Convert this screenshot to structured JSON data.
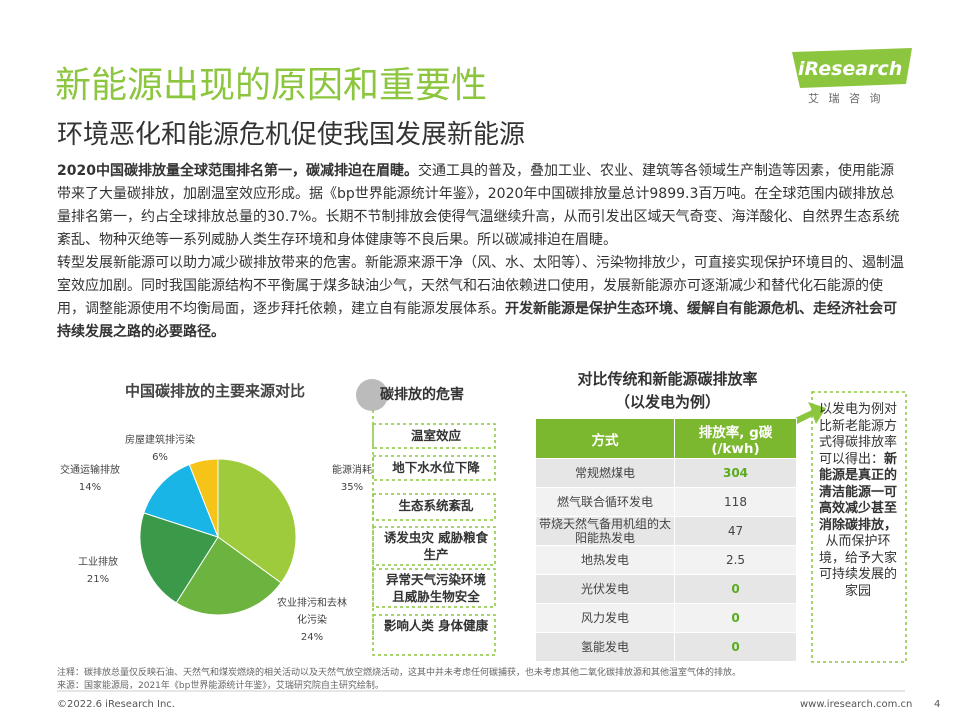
{
  "header": {
    "title": "新能源出现的原因和重要性",
    "subtitle": "环境恶化和能源危机促使我国发展新能源"
  },
  "logo": {
    "name": "iResearch",
    "tagline": "艾 瑞 咨 询"
  },
  "body": [
    [
      {
        "bold": true,
        "text": "2020中国碳排放量全球范围排名第一，碳减排迫在眉睫。"
      },
      {
        "bold": false,
        "text": "交通工具的普及，叠加工业、农业、建筑等各领域生产制造等因素，使用能源带来了大量碳排放，加剧温室效应形成。据《bp世界能源统计年鉴》，2020年中国碳排放量总计9899.3百万吨。在全球范围内碳排放总量排名第一，约占全球排放总量的30.7%。长期不节制排放会使得气温继续升高，从而引发出区域天气奇变、海洋酸化、自然界生态系统紊乱、物种灭绝等一系列威胁人类生存环境和身体健康等不良后果。所以碳减排迫在眉睫。"
      }
    ],
    [
      {
        "bold": false,
        "text": "转型发展新能源可以助力减少碳排放带来的危害。新能源来源干净（风、水、太阳等）、污染物排放少，可直接实现保护环境目的、遏制温室效应加剧。同时我国能源结构不平衡属于煤多缺油少气，天然气和石油依赖进口使用，发展新能源亦可逐渐减少和替代化石能源的使用，调整能源使用不均衡局面，逐步拜托依赖，建立自有能源发展体系。"
      },
      {
        "bold": true,
        "text": "开发新能源是保护生态环境、缓解自有能源危机、走经济社会可持续发展之路的必要路径。"
      }
    ]
  ],
  "pie_chart": {
    "type": "pie",
    "title": "中国碳排放的主要来源对比",
    "categories": [
      "能源消耗",
      "农业排污和去林化污染",
      "工业排放",
      "交通运输排放",
      "房屋建筑排污染"
    ],
    "values": [
      35,
      24,
      21,
      14,
      6
    ],
    "value_labels": [
      "35%",
      "24%",
      "21%",
      "14%",
      "6%"
    ],
    "colors": [
      "#9dcb3b",
      "#6cb33f",
      "#3a9a4a",
      "#19b5e6",
      "#f6c318"
    ]
  },
  "harms": {
    "title": "碳排放的危害",
    "items": [
      "温室效应",
      "地下水水位下降",
      "生态系统紊乱",
      "诱发虫灾 威胁粮食生产",
      "异常天气污染环境 且威胁生物安全",
      "影响人类 身体健康"
    ]
  },
  "table": {
    "title": "对比传统和新能源碳排放率",
    "subtitle": "（以发电为例）",
    "headers": [
      "方式",
      "排放率, g碳 (/kwh)"
    ],
    "highlight_color": "#5aab1e",
    "rows": [
      {
        "label": "常规燃煤电",
        "value": 304,
        "highlight": true
      },
      {
        "label": "燃气联合循环发电",
        "value": 118,
        "highlight": false
      },
      {
        "label": "带烧天然气备用机组的太阳能热发电",
        "value": 47,
        "highlight": false
      },
      {
        "label": "地热发电",
        "value": 2.5,
        "highlight": false
      },
      {
        "label": "光伏发电",
        "value": 0,
        "highlight": true
      },
      {
        "label": "风力发电",
        "value": 0,
        "highlight": true
      },
      {
        "label": "氢能发电",
        "value": 0,
        "highlight": true
      }
    ]
  },
  "note": [
    {
      "bold": false,
      "text": "以发电为例对比新老能源方式得碳排放率可以得出："
    },
    {
      "bold": true,
      "text": "新能源是真正的清洁能源一可高效减少甚至消除碳排放，"
    },
    {
      "bold": false,
      "text": "从而保护环境，给予大家可持续发展的家园"
    }
  ],
  "footer": {
    "notes": [
      "注释：碳排放总量仅反映石油、天然气和煤炭燃烧的相关活动以及天然气放空燃烧活动，这其中并未考虑任何碳捕获，也未考虑其他二氧化碳排放源和其他温室气体的排放。",
      "来源：国家能源局，2021年《bp世界能源统计年鉴》，艾瑞研究院自主研究绘制。"
    ],
    "copyright": "©2022.6 iResearch Inc.",
    "website": "www.iresearch.com.cn",
    "page": "4"
  }
}
